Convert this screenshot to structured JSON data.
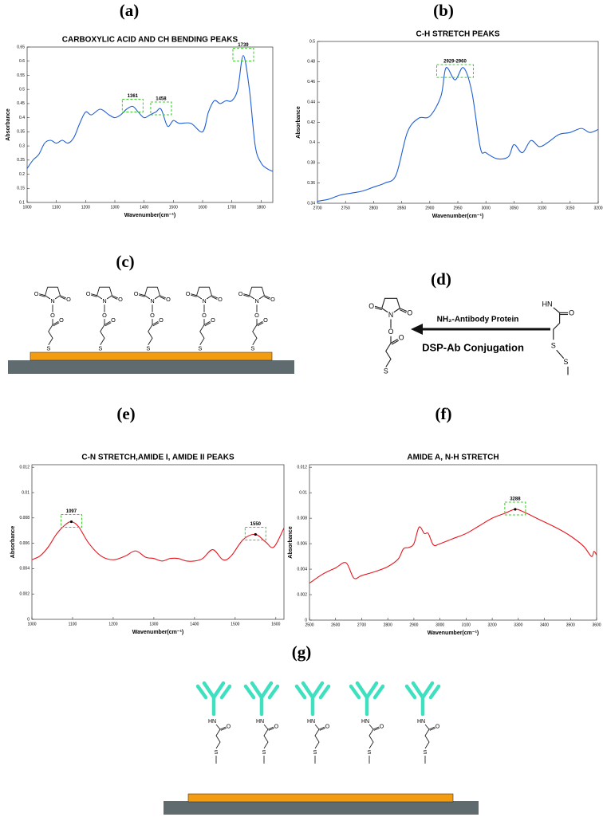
{
  "panel_labels": [
    "(a)",
    "(b)",
    "(c)",
    "(d)",
    "(e)",
    "(f)",
    "(g)"
  ],
  "chart_data": [
    {
      "type": "line",
      "title": "CARBOXYLIC ACID AND CH BENDING PEAKS",
      "xlabel": "Wavenumber(cm⁻¹)",
      "ylabel": "Absorbance",
      "color": "#1f5fd6",
      "x": [
        1000,
        1020,
        1040,
        1060,
        1080,
        1100,
        1120,
        1140,
        1160,
        1180,
        1200,
        1220,
        1250,
        1280,
        1300,
        1320,
        1340,
        1361,
        1380,
        1400,
        1420,
        1440,
        1458,
        1480,
        1500,
        1520,
        1560,
        1600,
        1620,
        1640,
        1660,
        1680,
        1700,
        1720,
        1739,
        1760,
        1780,
        1800,
        1820,
        1840
      ],
      "values": [
        0.22,
        0.25,
        0.27,
        0.31,
        0.32,
        0.31,
        0.32,
        0.31,
        0.33,
        0.38,
        0.42,
        0.41,
        0.43,
        0.41,
        0.4,
        0.41,
        0.43,
        0.44,
        0.42,
        0.4,
        0.41,
        0.42,
        0.43,
        0.37,
        0.39,
        0.38,
        0.38,
        0.35,
        0.42,
        0.46,
        0.45,
        0.46,
        0.46,
        0.5,
        0.62,
        0.5,
        0.3,
        0.24,
        0.22,
        0.21
      ],
      "xlim": [
        1000,
        1840
      ],
      "xticks": [
        1000,
        1100,
        1200,
        1300,
        1400,
        1500,
        1600,
        1700,
        1800
      ],
      "ylim": [
        0.1,
        0.65
      ],
      "yticks": [
        0.1,
        0.15,
        0.2,
        0.25,
        0.3,
        0.35,
        0.4,
        0.45,
        0.5,
        0.55,
        0.6,
        0.65
      ],
      "annotations": [
        {
          "label": "1361",
          "x": 1361,
          "y": 0.44
        },
        {
          "label": "1458",
          "x": 1458,
          "y": 0.43
        },
        {
          "label": "1739",
          "x": 1739,
          "y": 0.62
        }
      ],
      "annotation_dot": false
    },
    {
      "type": "line",
      "title": "C-H STRETCH PEAKS",
      "xlabel": "Wavenumber(cm⁻¹)",
      "ylabel": "Absorbance",
      "color": "#1f5fd6",
      "x": [
        2700,
        2720,
        2740,
        2760,
        2780,
        2800,
        2820,
        2840,
        2860,
        2880,
        2900,
        2920,
        2929,
        2945,
        2960,
        2975,
        2990,
        3000,
        3020,
        3040,
        3050,
        3065,
        3080,
        3095,
        3110,
        3130,
        3150,
        3170,
        3185,
        3200
      ],
      "values": [
        0.342,
        0.344,
        0.348,
        0.35,
        0.352,
        0.356,
        0.36,
        0.368,
        0.41,
        0.424,
        0.426,
        0.446,
        0.474,
        0.462,
        0.474,
        0.45,
        0.395,
        0.39,
        0.384,
        0.386,
        0.398,
        0.39,
        0.402,
        0.396,
        0.4,
        0.408,
        0.41,
        0.414,
        0.41,
        0.413
      ],
      "xlim": [
        2700,
        3200
      ],
      "xticks": [
        2700,
        2750,
        2800,
        2850,
        2900,
        2950,
        3000,
        3050,
        3100,
        3150,
        3200
      ],
      "ylim": [
        0.34,
        0.5
      ],
      "yticks": [
        0.34,
        0.36,
        0.38,
        0.4,
        0.42,
        0.44,
        0.46,
        0.48,
        0.5
      ],
      "annotations": [
        {
          "label": "2929-2960",
          "x": 2945,
          "y": 0.47
        }
      ],
      "annotation_dot": false
    },
    {
      "type": "line",
      "title": "C-N STRETCH,AMIDE I, AMIDE II PEAKS",
      "xlabel": "Wavenumber(cm⁻¹)",
      "ylabel": "Absorbance",
      "color": "#e8141c",
      "x": [
        1000,
        1020,
        1040,
        1060,
        1080,
        1097,
        1115,
        1140,
        1170,
        1200,
        1230,
        1255,
        1280,
        1300,
        1320,
        1340,
        1360,
        1380,
        1400,
        1420,
        1445,
        1470,
        1490,
        1520,
        1550,
        1575,
        1595,
        1620
      ],
      "values": [
        0.0047,
        0.005,
        0.0057,
        0.0067,
        0.0074,
        0.0077,
        0.0073,
        0.006,
        0.005,
        0.0047,
        0.005,
        0.0054,
        0.0049,
        0.0048,
        0.0046,
        0.0048,
        0.0048,
        0.0046,
        0.0046,
        0.0048,
        0.0055,
        0.0047,
        0.005,
        0.0063,
        0.0067,
        0.0061,
        0.0057,
        0.0072
      ],
      "xlim": [
        1000,
        1620
      ],
      "xticks": [
        1000,
        1100,
        1200,
        1300,
        1400,
        1500,
        1600
      ],
      "ylim": [
        0,
        0.0122
      ],
      "yticks": [
        0,
        0.002,
        0.004,
        0.006,
        0.008,
        0.01,
        0.012
      ],
      "annotations": [
        {
          "label": "1097",
          "x": 1097,
          "y": 0.0077
        },
        {
          "label": "1550",
          "x": 1550,
          "y": 0.0067
        }
      ],
      "annotation_dot": true
    },
    {
      "type": "line",
      "title": "AMIDE A, N-H STRETCH",
      "xlabel": "Wavenumber(cm⁻¹)",
      "ylabel": "Absorbance",
      "color": "#e8141c",
      "x": [
        2500,
        2550,
        2600,
        2640,
        2670,
        2700,
        2750,
        2800,
        2840,
        2860,
        2880,
        2900,
        2920,
        2940,
        2955,
        2975,
        3000,
        3050,
        3100,
        3150,
        3200,
        3250,
        3288,
        3320,
        3380,
        3450,
        3500,
        3550,
        3580,
        3590,
        3600
      ],
      "values": [
        0.0029,
        0.0036,
        0.0041,
        0.0045,
        0.0033,
        0.0035,
        0.0038,
        0.0042,
        0.0048,
        0.0056,
        0.0057,
        0.006,
        0.0073,
        0.0068,
        0.0068,
        0.0059,
        0.006,
        0.0064,
        0.0068,
        0.0074,
        0.008,
        0.0084,
        0.0087,
        0.0085,
        0.0079,
        0.0072,
        0.0066,
        0.0058,
        0.005,
        0.0054,
        0.0051
      ],
      "xlim": [
        2500,
        3600
      ],
      "xticks": [
        2500,
        2600,
        2700,
        2800,
        2900,
        3000,
        3100,
        3200,
        3300,
        3400,
        3500,
        3600
      ],
      "ylim": [
        0,
        0.0122
      ],
      "yticks": [
        0,
        0.002,
        0.004,
        0.006,
        0.008,
        0.01,
        0.012
      ],
      "annotations": [
        {
          "label": "3288",
          "x": 3288,
          "y": 0.0087
        }
      ],
      "annotation_dot": true
    }
  ],
  "dsp_atoms": [
    "O",
    "O",
    "N",
    "O",
    "O",
    "S"
  ],
  "amide_atoms": [
    "HN",
    "O",
    "S"
  ],
  "disulfide_atoms": [
    "HN",
    "O",
    "S",
    "S"
  ],
  "conjugation": {
    "reagent": "NH₂-Antibody Protein",
    "reaction": "DSP-Ab Conjugation"
  }
}
